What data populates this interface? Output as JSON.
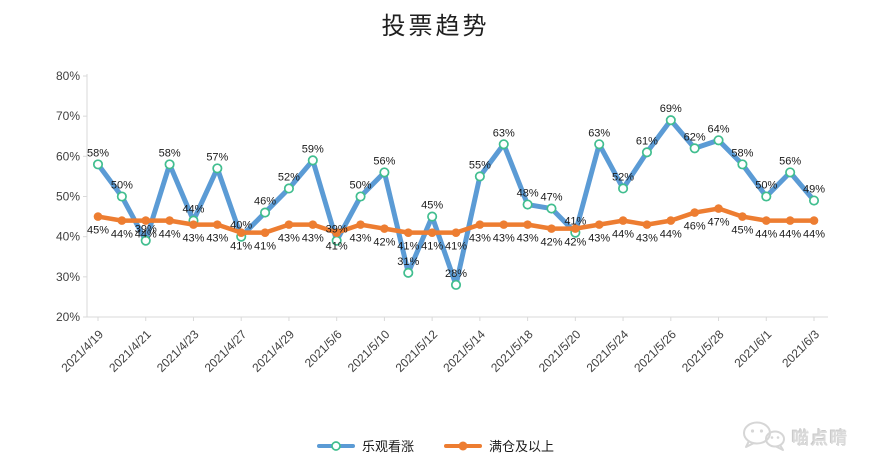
{
  "title": "投票趋势",
  "legend": [
    {
      "label": "乐观看涨"
    },
    {
      "label": "满仓及以上"
    }
  ],
  "watermark": {
    "text": "喵点晴",
    "icon": "wechat-bubbles-icon"
  },
  "colors": {
    "series_bullish": "#5B9BD5",
    "series_full_position": "#ED7D31",
    "bullish_marker_ring": "#41BE8F",
    "axis_line": "#d9d9d9",
    "axis_text": "#404040",
    "data_label": "#1a1a1a",
    "watermark_gray": "#dadada"
  },
  "chart_data": {
    "type": "line",
    "title": "投票趋势",
    "n_points": 31,
    "x_tick_every": 2,
    "x_tick_labels": [
      "2021/4/19",
      "2021/4/21",
      "2021/4/23",
      "2021/4/27",
      "2021/4/29",
      "2021/5/6",
      "2021/5/10",
      "2021/5/12",
      "2021/5/14",
      "2021/5/18",
      "2021/5/20",
      "2021/5/24",
      "2021/5/26",
      "2021/5/28",
      "2021/6/1",
      "2021/6/3"
    ],
    "y_axis": {
      "min": 20,
      "max": 80,
      "step": 10,
      "tick_labels": [
        "20%",
        "30%",
        "40%",
        "50%",
        "60%",
        "70%",
        "80%"
      ],
      "format": "percent"
    },
    "ylim": [
      20,
      80
    ],
    "grid": false,
    "data_labels": true,
    "legend_position": "bottom",
    "series": [
      {
        "name": "乐观看涨",
        "color": "#5B9BD5",
        "marker": "open-circle",
        "marker_stroke": "#41BE8F",
        "label_position": "above",
        "values": [
          58,
          50,
          39,
          58,
          44,
          57,
          40,
          46,
          52,
          59,
          39,
          50,
          56,
          31,
          45,
          28,
          55,
          63,
          48,
          47,
          41,
          63,
          52,
          61,
          69,
          62,
          64,
          58,
          50,
          56,
          49
        ]
      },
      {
        "name": "满仓及以上",
        "color": "#ED7D31",
        "marker": "filled-circle",
        "marker_stroke": "#ED7D31",
        "label_position": "below",
        "values": [
          45,
          44,
          44,
          44,
          43,
          43,
          41,
          41,
          43,
          43,
          41,
          43,
          42,
          41,
          41,
          41,
          43,
          43,
          43,
          42,
          42,
          43,
          44,
          43,
          44,
          46,
          47,
          45,
          44,
          44,
          44
        ]
      }
    ]
  }
}
